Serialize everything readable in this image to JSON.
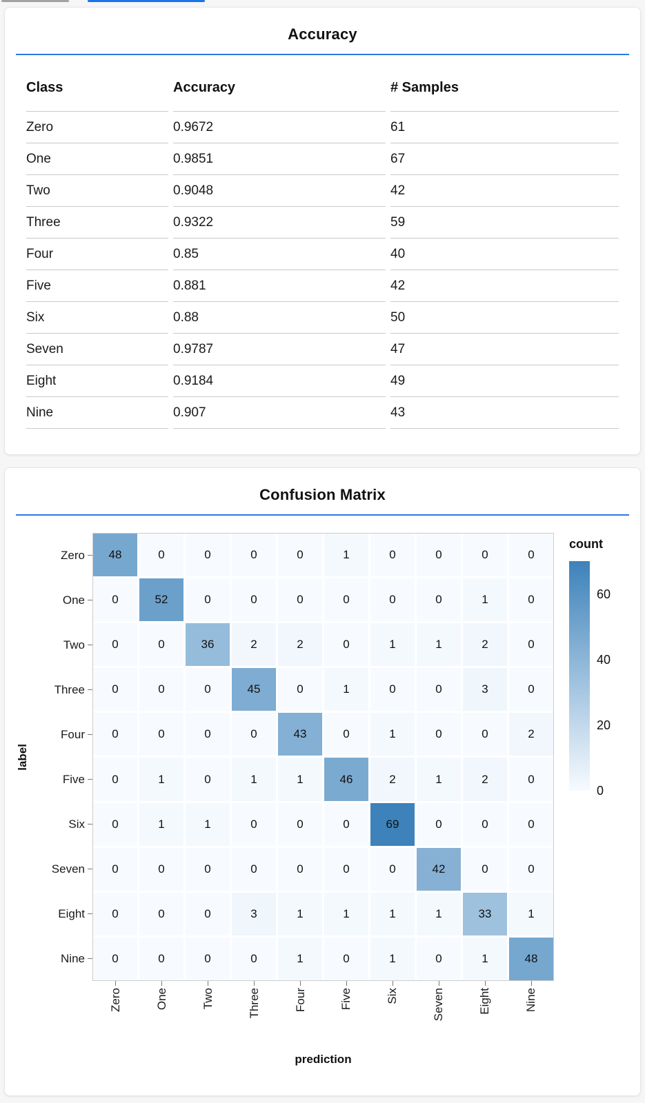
{
  "page": {
    "background": "#f6f6f6",
    "accent_blue": "#2a7ae2"
  },
  "top_bars": {
    "gray_color": "#a2a2a2",
    "blue_color": "#1a73e8"
  },
  "panels": {
    "accuracy": {
      "title": "Accuracy"
    },
    "confusion": {
      "title": "Confusion Matrix"
    }
  },
  "chart_data": [
    {
      "type": "table",
      "title": "Accuracy",
      "columns": [
        "Class",
        "Accuracy",
        "# Samples"
      ],
      "rows": [
        [
          "Zero",
          "0.9672",
          "61"
        ],
        [
          "One",
          "0.9851",
          "67"
        ],
        [
          "Two",
          "0.9048",
          "42"
        ],
        [
          "Three",
          "0.9322",
          "59"
        ],
        [
          "Four",
          "0.85",
          "40"
        ],
        [
          "Five",
          "0.881",
          "42"
        ],
        [
          "Six",
          "0.88",
          "50"
        ],
        [
          "Seven",
          "0.9787",
          "47"
        ],
        [
          "Eight",
          "0.9184",
          "49"
        ],
        [
          "Nine",
          "0.907",
          "43"
        ]
      ]
    },
    {
      "type": "heatmap",
      "title": "Confusion Matrix",
      "xlabel": "prediction",
      "ylabel": "label",
      "x_categories": [
        "Zero",
        "One",
        "Two",
        "Three",
        "Four",
        "Five",
        "Six",
        "Seven",
        "Eight",
        "Nine"
      ],
      "y_categories": [
        "Zero",
        "One",
        "Two",
        "Three",
        "Four",
        "Five",
        "Six",
        "Seven",
        "Eight",
        "Nine"
      ],
      "values": [
        [
          48,
          0,
          0,
          0,
          0,
          1,
          0,
          0,
          0,
          0
        ],
        [
          0,
          52,
          0,
          0,
          0,
          0,
          0,
          0,
          1,
          0
        ],
        [
          0,
          0,
          36,
          2,
          2,
          0,
          1,
          1,
          2,
          0
        ],
        [
          0,
          0,
          0,
          45,
          0,
          1,
          0,
          0,
          3,
          0
        ],
        [
          0,
          0,
          0,
          0,
          43,
          0,
          1,
          0,
          0,
          2
        ],
        [
          0,
          1,
          0,
          1,
          1,
          46,
          2,
          1,
          2,
          0
        ],
        [
          0,
          1,
          1,
          0,
          0,
          0,
          69,
          0,
          0,
          0
        ],
        [
          0,
          0,
          0,
          0,
          0,
          0,
          0,
          42,
          0,
          0
        ],
        [
          0,
          0,
          0,
          3,
          1,
          1,
          1,
          1,
          33,
          1
        ],
        [
          0,
          0,
          0,
          0,
          1,
          0,
          1,
          0,
          1,
          48
        ]
      ],
      "legend": {
        "title": "count",
        "ticks": [
          60,
          40,
          20,
          0
        ],
        "domain": [
          0,
          70
        ],
        "position": "right"
      },
      "color_scale": {
        "low": "#f7fbff",
        "high": "#3d82ba",
        "max_value": 69
      },
      "grid": false
    }
  ]
}
